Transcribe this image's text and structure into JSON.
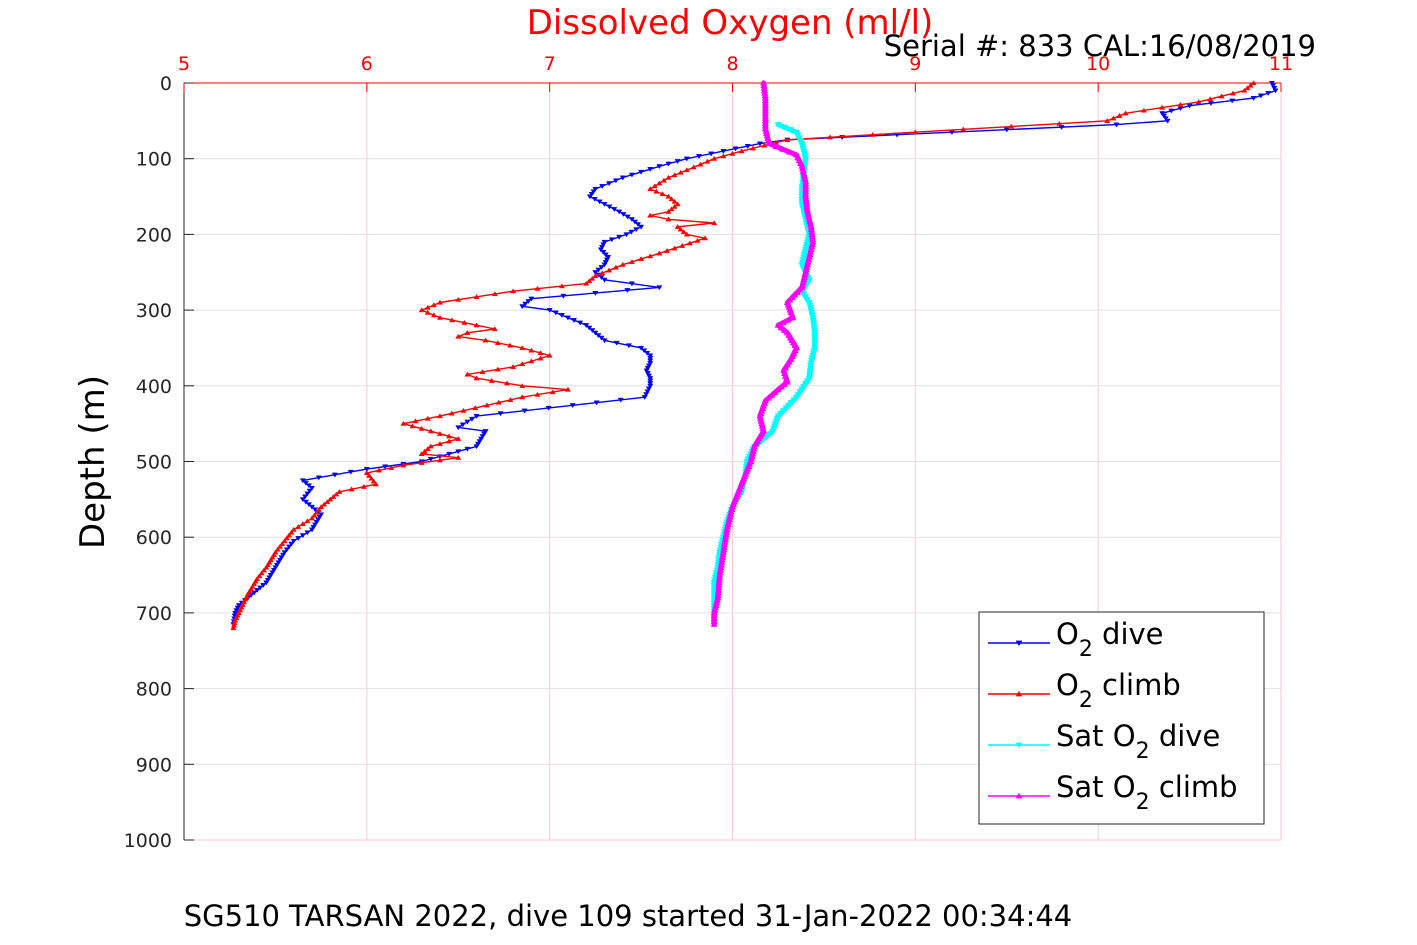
{
  "chart_data": {
    "type": "line",
    "title": "Dissolved Oxygen (ml/l)",
    "subtitle": "Serial #: 833  CAL:16/08/2019",
    "footer": "SG510 TARSAN 2022, dive 109 started 31-Jan-2022 00:34:44",
    "xlabel": "",
    "ylabel": "Depth (m)",
    "xlim": [
      5,
      11
    ],
    "ylim": [
      0,
      1000
    ],
    "y_reversed": true,
    "x_axis_position": "top",
    "x_ticks": [
      "5",
      "6",
      "7",
      "8",
      "9",
      "10",
      "11"
    ],
    "y_ticks": [
      "0",
      "100",
      "200",
      "300",
      "400",
      "500",
      "600",
      "700",
      "800",
      "900",
      "1000"
    ],
    "grid": true,
    "legend_position": "bottom-right",
    "colors": {
      "title": "#ff0000",
      "x_ticks": "#ff0000",
      "grid": "#f6c9cf"
    },
    "series": [
      {
        "name": "O2 dive",
        "name_main": "O",
        "name_sub": "2",
        "name_rest": " dive",
        "color": "#0000ff",
        "marker": "triangle-down",
        "x": [
          10.95,
          10.97,
          10.85,
          10.5,
          10.35,
          10.38,
          10.1,
          8.3,
          8.15,
          7.95,
          7.75,
          7.6,
          7.4,
          7.25,
          7.22,
          7.3,
          7.38,
          7.45,
          7.5,
          7.42,
          7.3,
          7.28,
          7.32,
          7.3,
          7.25,
          7.3,
          7.45,
          7.6,
          6.9,
          6.85,
          7.0,
          7.1,
          7.2,
          7.25,
          7.3,
          7.5,
          7.55,
          7.55,
          7.53,
          7.55,
          7.55,
          7.52,
          6.6,
          6.5,
          6.65,
          6.6,
          6.45,
          6.3,
          6.0,
          5.65,
          5.7,
          5.65,
          5.75,
          5.7,
          5.6,
          5.55,
          5.5,
          5.45,
          5.4,
          5.35,
          5.3,
          5.28,
          5.27
        ],
        "y": [
          0,
          10,
          20,
          30,
          40,
          50,
          55,
          75,
          80,
          90,
          100,
          110,
          125,
          140,
          150,
          160,
          170,
          180,
          190,
          200,
          210,
          220,
          230,
          240,
          250,
          260,
          265,
          270,
          285,
          295,
          300,
          310,
          320,
          330,
          340,
          350,
          360,
          370,
          380,
          390,
          400,
          415,
          440,
          455,
          460,
          480,
          490,
          500,
          510,
          525,
          535,
          550,
          570,
          590,
          605,
          620,
          640,
          660,
          670,
          680,
          690,
          700,
          715
        ]
      },
      {
        "name": "O2 climb",
        "name_main": "O",
        "name_sub": "2",
        "name_rest": " climb",
        "color": "#ff0000",
        "marker": "triangle-up",
        "x": [
          10.85,
          10.8,
          10.55,
          10.15,
          10.05,
          9.0,
          8.3,
          8.05,
          7.9,
          7.75,
          7.65,
          7.55,
          7.65,
          7.7,
          7.65,
          7.55,
          7.65,
          7.9,
          7.7,
          7.75,
          7.85,
          7.6,
          7.4,
          7.25,
          7.2,
          6.8,
          6.4,
          6.3,
          6.4,
          6.6,
          6.7,
          6.55,
          6.5,
          6.65,
          6.85,
          7.0,
          6.8,
          6.55,
          6.6,
          6.85,
          7.1,
          6.85,
          6.4,
          6.2,
          6.35,
          6.5,
          6.35,
          6.3,
          6.5,
          6.2,
          6.0,
          6.05,
          5.85,
          5.75,
          5.7,
          5.6,
          5.55,
          5.5,
          5.45,
          5.4,
          5.35,
          5.3,
          5.28,
          5.27
        ],
        "y": [
          0,
          10,
          25,
          40,
          50,
          65,
          75,
          90,
          100,
          115,
          125,
          140,
          150,
          160,
          170,
          175,
          180,
          185,
          190,
          200,
          205,
          225,
          240,
          255,
          265,
          275,
          290,
          300,
          310,
          320,
          325,
          330,
          335,
          340,
          350,
          360,
          375,
          385,
          390,
          400,
          405,
          415,
          440,
          450,
          460,
          470,
          480,
          490,
          495,
          505,
          515,
          530,
          540,
          560,
          575,
          590,
          605,
          620,
          640,
          655,
          675,
          700,
          710,
          720
        ]
      },
      {
        "name": "Sat O2 dive",
        "name_main": "Sat O",
        "name_sub": "2",
        "name_rest": " dive",
        "color": "#00ffff",
        "marker": "triangle-down",
        "x": [
          8.25,
          8.35,
          8.38,
          8.4,
          8.39,
          8.38,
          8.38,
          8.4,
          8.42,
          8.4,
          8.38,
          8.4,
          8.42,
          8.38,
          8.42,
          8.44,
          8.45,
          8.45,
          8.43,
          8.42,
          8.35,
          8.25,
          8.22,
          8.12,
          8.08,
          8.07,
          8.05,
          8.0,
          7.97,
          7.95,
          7.93,
          7.92,
          7.9,
          7.9
        ],
        "y": [
          55,
          65,
          80,
          100,
          120,
          140,
          160,
          180,
          200,
          220,
          240,
          250,
          260,
          275,
          290,
          310,
          330,
          350,
          370,
          390,
          415,
          440,
          460,
          480,
          500,
          520,
          540,
          560,
          580,
          600,
          620,
          640,
          660,
          715
        ]
      },
      {
        "name": "Sat O2 climb",
        "name_main": "Sat O",
        "name_sub": "2",
        "name_rest": " climb",
        "color": "#ff00ff",
        "marker": "triangle-up",
        "x": [
          8.17,
          8.18,
          8.18,
          8.18,
          8.2,
          8.35,
          8.38,
          8.4,
          8.4,
          8.41,
          8.43,
          8.44,
          8.42,
          8.4,
          8.38,
          8.3,
          8.33,
          8.25,
          8.3,
          8.35,
          8.32,
          8.28,
          8.3,
          8.25,
          8.18,
          8.15,
          8.17,
          8.12,
          8.1,
          8.05,
          8.0,
          7.97,
          7.95,
          7.93,
          7.92,
          7.9,
          7.9
        ],
        "y": [
          0,
          20,
          40,
          60,
          80,
          95,
          110,
          130,
          150,
          170,
          190,
          210,
          230,
          250,
          270,
          290,
          310,
          320,
          330,
          350,
          365,
          380,
          395,
          405,
          420,
          440,
          460,
          480,
          500,
          530,
          560,
          590,
          620,
          650,
          680,
          700,
          715
        ]
      }
    ]
  }
}
